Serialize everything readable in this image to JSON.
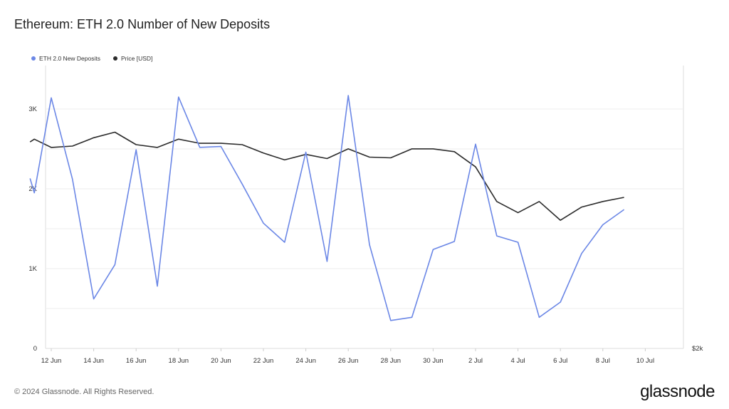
{
  "title": "Ethereum: ETH 2.0 Number of New Deposits",
  "footer": {
    "copyright": "© 2024 Glassnode. All Rights Reserved.",
    "brand": "glassnode"
  },
  "colors": {
    "deposits": "#6b87e6",
    "price": "#2b2b2b",
    "grid": "#eeeeee"
  },
  "chart_data": {
    "type": "line",
    "title": "Ethereum: ETH 2.0 Number of New Deposits",
    "x": [
      "2024-06-11",
      "2024-06-12",
      "2024-06-13",
      "2024-06-14",
      "2024-06-15",
      "2024-06-16",
      "2024-06-17",
      "2024-06-18",
      "2024-06-19",
      "2024-06-20",
      "2024-06-21",
      "2024-06-22",
      "2024-06-23",
      "2024-06-24",
      "2024-06-25",
      "2024-06-26",
      "2024-06-27",
      "2024-06-28",
      "2024-06-29",
      "2024-06-30",
      "2024-07-01",
      "2024-07-02",
      "2024-07-03",
      "2024-07-04",
      "2024-07-05",
      "2024-07-06",
      "2024-07-07",
      "2024-07-08",
      "2024-07-09",
      "2024-07-10"
    ],
    "x_tick_labels": [
      "12 Jun",
      "14 Jun",
      "16 Jun",
      "18 Jun",
      "20 Jun",
      "22 Jun",
      "24 Jun",
      "26 Jun",
      "28 Jun",
      "30 Jun",
      "2 Jul",
      "4 Jul",
      "6 Jul",
      "8 Jul",
      "10 Jul"
    ],
    "y_left": {
      "ticks": [
        0,
        1000,
        2000,
        3000
      ],
      "tick_labels": [
        "0",
        "1K",
        "2K",
        "3K"
      ],
      "ylim": [
        0,
        3500
      ]
    },
    "y_right": {
      "ticks": [
        2000
      ],
      "tick_labels": [
        "$2k"
      ],
      "ylim": [
        2000,
        4000
      ]
    },
    "series": [
      {
        "name": "ETH 2.0 New Deposits",
        "axis": "left",
        "points": [
          [
            0.0,
            2130
          ],
          [
            0.2,
            1950
          ],
          [
            1,
            3140
          ],
          [
            2,
            2120
          ],
          [
            3,
            620
          ],
          [
            4,
            1050
          ],
          [
            5,
            2490
          ],
          [
            6,
            780
          ],
          [
            7,
            3150
          ],
          [
            8,
            2520
          ],
          [
            9,
            2530
          ],
          [
            10,
            2060
          ],
          [
            11,
            1570
          ],
          [
            12,
            1330
          ],
          [
            13,
            2460
          ],
          [
            14,
            1090
          ],
          [
            15,
            3170
          ],
          [
            16,
            1300
          ],
          [
            17,
            350
          ],
          [
            18,
            390
          ],
          [
            19,
            1240
          ],
          [
            20,
            1340
          ],
          [
            21,
            2560
          ],
          [
            22,
            1410
          ],
          [
            23,
            1330
          ],
          [
            24,
            390
          ],
          [
            25,
            580
          ],
          [
            26,
            1190
          ],
          [
            27,
            1550
          ],
          [
            28,
            1740
          ]
        ]
      },
      {
        "name": "Price [USD]",
        "axis": "right",
        "points": [
          [
            0.0,
            3490
          ],
          [
            0.2,
            3510
          ],
          [
            1,
            3450
          ],
          [
            2,
            3460
          ],
          [
            3,
            3520
          ],
          [
            4,
            3560
          ],
          [
            5,
            3470
          ],
          [
            6,
            3450
          ],
          [
            7,
            3510
          ],
          [
            8,
            3480
          ],
          [
            9,
            3480
          ],
          [
            10,
            3470
          ],
          [
            11,
            3410
          ],
          [
            12,
            3360
          ],
          [
            13,
            3400
          ],
          [
            14,
            3370
          ],
          [
            15,
            3440
          ],
          [
            16,
            3380
          ],
          [
            17,
            3375
          ],
          [
            18,
            3440
          ],
          [
            19,
            3440
          ],
          [
            20,
            3420
          ],
          [
            21,
            3310
          ],
          [
            22,
            3060
          ],
          [
            23,
            2980
          ],
          [
            24,
            3060
          ],
          [
            25,
            2925
          ],
          [
            26,
            3020
          ],
          [
            27,
            3060
          ],
          [
            28,
            3090
          ]
        ]
      }
    ],
    "legend": "top-left",
    "grid": true
  }
}
